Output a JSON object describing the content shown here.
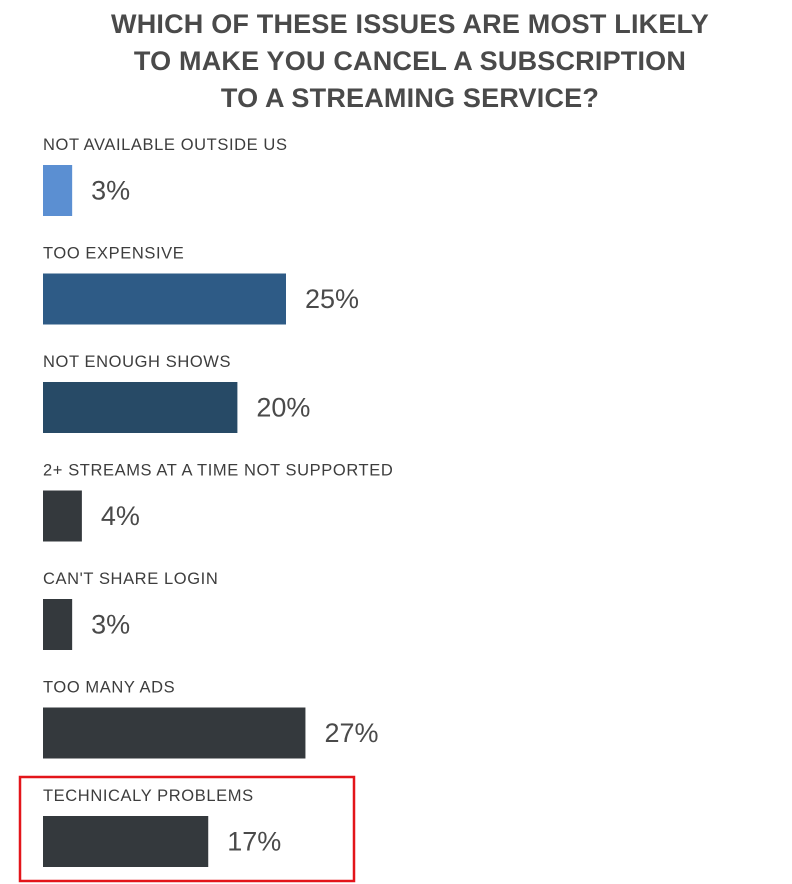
{
  "title_lines": [
    "WHICH OF THESE ISSUES ARE MOST LIKELY",
    "TO MAKE YOU CANCEL A SUBSCRIPTION",
    "TO A STREAMING SERVICE?"
  ],
  "highlight": {
    "category": "TECHNICALY PROBLEMS",
    "color": "#e3151a"
  },
  "chart_data": {
    "type": "bar",
    "orientation": "horizontal",
    "title": "WHICH OF THESE ISSUES ARE MOST LIKELY TO MAKE YOU CANCEL A SUBSCRIPTION TO A STREAMING SERVICE?",
    "categories": [
      "NOT AVAILABLE OUTSIDE US",
      "TOO EXPENSIVE",
      "NOT ENOUGH SHOWS",
      "2+ STREAMS AT A TIME NOT SUPPORTED",
      "CAN'T SHARE LOGIN",
      "TOO MANY ADS",
      "TECHNICALY PROBLEMS"
    ],
    "values": [
      3,
      25,
      20,
      4,
      3,
      27,
      17
    ],
    "value_labels": [
      "3%",
      "25%",
      "20%",
      "4%",
      "3%",
      "27%",
      "17%"
    ],
    "colors": [
      "#5b8fd2",
      "#2e5b86",
      "#274a66",
      "#34393d",
      "#34393d",
      "#34393d",
      "#34393d"
    ],
    "unit": "%",
    "xlim": [
      0,
      27
    ],
    "grid": false,
    "legend": "none"
  }
}
